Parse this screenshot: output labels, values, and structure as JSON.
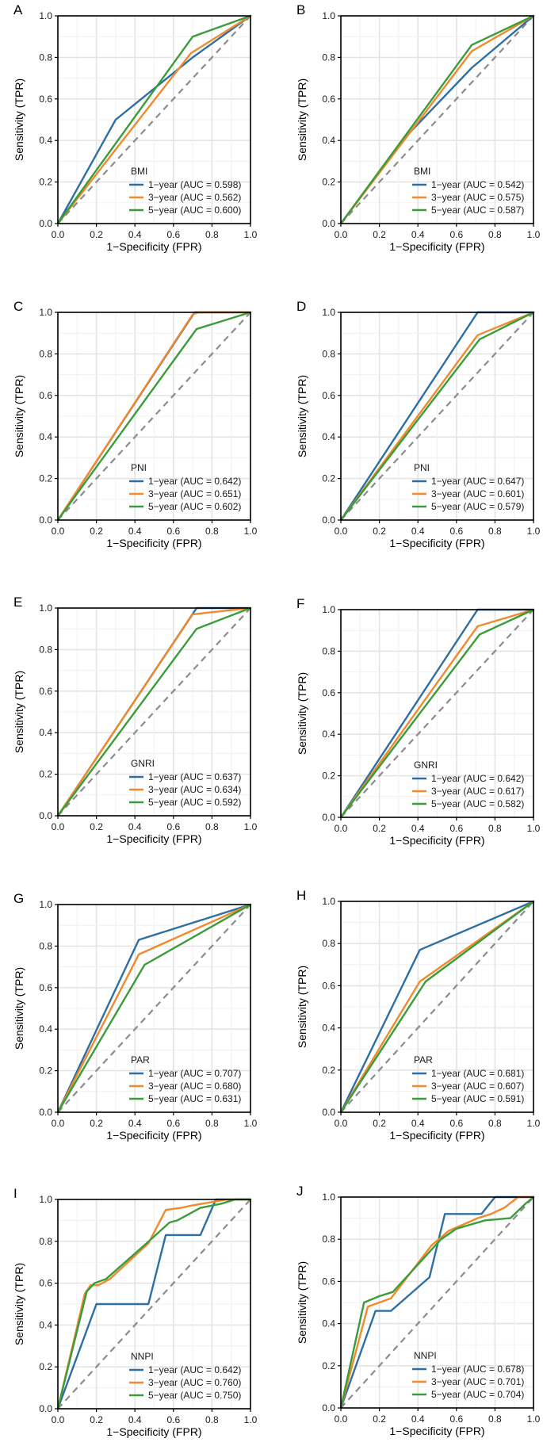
{
  "colors": {
    "1-year": "#2e6fa3",
    "3-year": "#f08a2c",
    "5-year": "#3a9c3a",
    "reference": "#8c8c8c"
  },
  "chart_data": [
    {
      "panel": "A",
      "type": "line",
      "xlabel": "1−Specificity (FPR)",
      "ylabel": "Sensitivity (TPR)",
      "xlim": [
        0,
        1
      ],
      "ylim": [
        0,
        1
      ],
      "xticks": [
        "0.0",
        "0.2",
        "0.4",
        "0.6",
        "0.8",
        "1.0"
      ],
      "yticks": [
        "0.0",
        "0.2",
        "0.4",
        "0.6",
        "0.8",
        "1.0"
      ],
      "legend_title": "BMI",
      "legend_position": "bottom-right",
      "series": [
        {
          "name": "1-year",
          "label": "1−year (AUC = 0.598)",
          "points": [
            [
              0,
              0
            ],
            [
              0.3,
              0.5
            ],
            [
              0.7,
              0.8
            ],
            [
              1,
              1
            ]
          ]
        },
        {
          "name": "3-year",
          "label": "3−year (AUC = 0.562)",
          "points": [
            [
              0,
              0
            ],
            [
              0.69,
              0.82
            ],
            [
              1,
              1
            ]
          ]
        },
        {
          "name": "5-year",
          "label": "5−year (AUC = 0.600)",
          "points": [
            [
              0,
              0
            ],
            [
              0.7,
              0.9
            ],
            [
              1,
              1
            ]
          ]
        }
      ]
    },
    {
      "panel": "B",
      "type": "line",
      "xlabel": "1−Specificity (FPR)",
      "ylabel": "Sensitivity (TPR)",
      "xlim": [
        0,
        1
      ],
      "ylim": [
        0,
        1
      ],
      "xticks": [
        "0.0",
        "0.2",
        "0.4",
        "0.6",
        "0.8",
        "1.0"
      ],
      "yticks": [
        "0.0",
        "0.2",
        "0.4",
        "0.6",
        "0.8",
        "1.0"
      ],
      "legend_title": "BMI",
      "legend_position": "bottom-right",
      "series": [
        {
          "name": "1-year",
          "label": "1−year (AUC = 0.542)",
          "points": [
            [
              0,
              0
            ],
            [
              0.35,
              0.43
            ],
            [
              0.68,
              0.75
            ],
            [
              1,
              1
            ]
          ]
        },
        {
          "name": "3-year",
          "label": "3−year (AUC = 0.575)",
          "points": [
            [
              0,
              0
            ],
            [
              0.68,
              0.83
            ],
            [
              1,
              1
            ]
          ]
        },
        {
          "name": "5-year",
          "label": "5−year (AUC = 0.587)",
          "points": [
            [
              0,
              0
            ],
            [
              0.68,
              0.86
            ],
            [
              1,
              1
            ]
          ]
        }
      ]
    },
    {
      "panel": "C",
      "type": "line",
      "xlabel": "1−Specificity (FPR)",
      "ylabel": "Sensitivity (TPR)",
      "xlim": [
        0,
        1
      ],
      "ylim": [
        0,
        1
      ],
      "xticks": [
        "0.0",
        "0.2",
        "0.4",
        "0.6",
        "0.8",
        "1.0"
      ],
      "yticks": [
        "0.0",
        "0.2",
        "0.4",
        "0.6",
        "0.8",
        "1.0"
      ],
      "legend_title": "PNI",
      "legend_position": "bottom-right",
      "series": [
        {
          "name": "1-year",
          "label": "1−year (AUC = 0.642)",
          "points": [
            [
              0,
              0
            ],
            [
              0.71,
              1
            ],
            [
              1,
              1
            ]
          ]
        },
        {
          "name": "3-year",
          "label": "3−year (AUC = 0.651)",
          "points": [
            [
              0,
              0
            ],
            [
              0.7,
              0.99
            ],
            [
              0.73,
              1
            ],
            [
              1,
              1
            ]
          ]
        },
        {
          "name": "5-year",
          "label": "5−year (AUC = 0.602)",
          "points": [
            [
              0,
              0
            ],
            [
              0.72,
              0.92
            ],
            [
              1,
              1
            ]
          ]
        }
      ]
    },
    {
      "panel": "D",
      "type": "line",
      "xlabel": "1−Specificity (FPR)",
      "ylabel": "Sensitivity (TPR)",
      "xlim": [
        0,
        1
      ],
      "ylim": [
        0,
        1
      ],
      "xticks": [
        "0.0",
        "0.2",
        "0.4",
        "0.6",
        "0.8",
        "1.0"
      ],
      "yticks": [
        "0.0",
        "0.2",
        "0.4",
        "0.6",
        "0.8",
        "1.0"
      ],
      "legend_title": "PNI",
      "legend_position": "bottom-right",
      "series": [
        {
          "name": "1-year",
          "label": "1−year (AUC = 0.647)",
          "points": [
            [
              0,
              0
            ],
            [
              0.71,
              1
            ],
            [
              1,
              1
            ]
          ]
        },
        {
          "name": "3-year",
          "label": "3−year (AUC = 0.601)",
          "points": [
            [
              0,
              0
            ],
            [
              0.71,
              0.89
            ],
            [
              1,
              1
            ]
          ]
        },
        {
          "name": "5-year",
          "label": "5−year (AUC = 0.579)",
          "points": [
            [
              0,
              0
            ],
            [
              0.72,
              0.87
            ],
            [
              1,
              1
            ]
          ]
        }
      ]
    },
    {
      "panel": "E",
      "type": "line",
      "xlabel": "1−Specificity (FPR)",
      "ylabel": "Sensitivity (TPR)",
      "xlim": [
        0,
        1
      ],
      "ylim": [
        0,
        1
      ],
      "xticks": [
        "0.0",
        "0.2",
        "0.4",
        "0.6",
        "0.8",
        "1.0"
      ],
      "yticks": [
        "0.0",
        "0.2",
        "0.4",
        "0.6",
        "0.8",
        "1.0"
      ],
      "legend_title": "GNRI",
      "legend_position": "bottom-right",
      "series": [
        {
          "name": "1-year",
          "label": "1−year (AUC = 0.637)",
          "points": [
            [
              0,
              0
            ],
            [
              0.72,
              1
            ],
            [
              1,
              1
            ]
          ]
        },
        {
          "name": "3-year",
          "label": "3−year (AUC = 0.634)",
          "points": [
            [
              0,
              0
            ],
            [
              0.7,
              0.97
            ],
            [
              1,
              1
            ]
          ]
        },
        {
          "name": "5-year",
          "label": "5−year (AUC = 0.592)",
          "points": [
            [
              0,
              0
            ],
            [
              0.72,
              0.9
            ],
            [
              1,
              1
            ]
          ]
        }
      ]
    },
    {
      "panel": "F",
      "type": "line",
      "xlabel": "1−Specificity (FPR)",
      "ylabel": "Sensitivity (TPR)",
      "xlim": [
        0,
        1
      ],
      "ylim": [
        0,
        1
      ],
      "xticks": [
        "0.0",
        "0.2",
        "0.4",
        "0.6",
        "0.8",
        "1.0"
      ],
      "yticks": [
        "0.0",
        "0.2",
        "0.4",
        "0.6",
        "0.8",
        "1.0"
      ],
      "legend_title": "GNRI",
      "legend_position": "bottom-right",
      "series": [
        {
          "name": "1-year",
          "label": "1−year (AUC = 0.642)",
          "points": [
            [
              0,
              0
            ],
            [
              0.71,
              1
            ],
            [
              1,
              1
            ]
          ]
        },
        {
          "name": "3-year",
          "label": "3−year (AUC = 0.617)",
          "points": [
            [
              0,
              0
            ],
            [
              0.71,
              0.92
            ],
            [
              1,
              1
            ]
          ]
        },
        {
          "name": "5-year",
          "label": "5−year (AUC = 0.582)",
          "points": [
            [
              0,
              0
            ],
            [
              0.72,
              0.88
            ],
            [
              1,
              1
            ]
          ]
        }
      ]
    },
    {
      "panel": "G",
      "type": "line",
      "xlabel": "1−Specificity (FPR)",
      "ylabel": "Sensitivity (TPR)",
      "xlim": [
        0,
        1
      ],
      "ylim": [
        0,
        1
      ],
      "xticks": [
        "0.0",
        "0.2",
        "0.4",
        "0.6",
        "0.8",
        "1.0"
      ],
      "yticks": [
        "0.0",
        "0.2",
        "0.4",
        "0.6",
        "0.8",
        "1.0"
      ],
      "legend_title": "PAR",
      "legend_position": "bottom-right",
      "series": [
        {
          "name": "1-year",
          "label": "1−year (AUC = 0.707)",
          "points": [
            [
              0,
              0
            ],
            [
              0.42,
              0.83
            ],
            [
              1,
              1
            ]
          ]
        },
        {
          "name": "3-year",
          "label": "3−year (AUC = 0.680)",
          "points": [
            [
              0,
              0
            ],
            [
              0.42,
              0.76
            ],
            [
              1,
              1
            ]
          ]
        },
        {
          "name": "5-year",
          "label": "5−year (AUC = 0.631)",
          "points": [
            [
              0,
              0
            ],
            [
              0.45,
              0.71
            ],
            [
              1,
              1
            ]
          ]
        }
      ]
    },
    {
      "panel": "H",
      "type": "line",
      "xlabel": "1−Specificity (FPR)",
      "ylabel": "Sensitivity (TPR)",
      "xlim": [
        0,
        1
      ],
      "ylim": [
        0,
        1
      ],
      "xticks": [
        "0.0",
        "0.2",
        "0.4",
        "0.6",
        "0.8",
        "1.0"
      ],
      "yticks": [
        "0.0",
        "0.2",
        "0.4",
        "0.6",
        "0.8",
        "1.0"
      ],
      "legend_title": "PAR",
      "legend_position": "bottom-right",
      "series": [
        {
          "name": "1-year",
          "label": "1−year (AUC = 0.681)",
          "points": [
            [
              0,
              0
            ],
            [
              0.41,
              0.77
            ],
            [
              1,
              1
            ]
          ]
        },
        {
          "name": "3-year",
          "label": "3−year (AUC = 0.607)",
          "points": [
            [
              0,
              0
            ],
            [
              0.41,
              0.62
            ],
            [
              1,
              1
            ]
          ]
        },
        {
          "name": "5-year",
          "label": "5−year (AUC = 0.591)",
          "points": [
            [
              0,
              0
            ],
            [
              0.44,
              0.62
            ],
            [
              1,
              1
            ]
          ]
        }
      ]
    },
    {
      "panel": "I",
      "type": "line",
      "xlabel": "1−Specificity (FPR)",
      "ylabel": "Sensitivity (TPR)",
      "xlim": [
        0,
        1
      ],
      "ylim": [
        0,
        1
      ],
      "xticks": [
        "0.0",
        "0.2",
        "0.4",
        "0.6",
        "0.8",
        "1.0"
      ],
      "yticks": [
        "0.0",
        "0.2",
        "0.4",
        "0.6",
        "0.8",
        "1.0"
      ],
      "legend_title": "NNPI",
      "legend_position": "bottom-right",
      "series": [
        {
          "name": "1-year",
          "label": "1−year (AUC = 0.642)",
          "points": [
            [
              0,
              0
            ],
            [
              0.2,
              0.5
            ],
            [
              0.47,
              0.5
            ],
            [
              0.56,
              0.83
            ],
            [
              0.74,
              0.83
            ],
            [
              0.82,
              1
            ],
            [
              1,
              1
            ]
          ]
        },
        {
          "name": "3-year",
          "label": "3−year (AUC = 0.760)",
          "points": [
            [
              0,
              0
            ],
            [
              0.14,
              0.55
            ],
            [
              0.17,
              0.59
            ],
            [
              0.21,
              0.59
            ],
            [
              0.27,
              0.62
            ],
            [
              0.47,
              0.79
            ],
            [
              0.56,
              0.95
            ],
            [
              0.64,
              0.96
            ],
            [
              0.69,
              0.97
            ],
            [
              0.75,
              0.98
            ],
            [
              0.88,
              1
            ],
            [
              1,
              1
            ]
          ]
        },
        {
          "name": "5-year",
          "label": "5−year (AUC = 0.750)",
          "points": [
            [
              0,
              0
            ],
            [
              0.15,
              0.56
            ],
            [
              0.19,
              0.6
            ],
            [
              0.25,
              0.62
            ],
            [
              0.46,
              0.79
            ],
            [
              0.58,
              0.89
            ],
            [
              0.62,
              0.9
            ],
            [
              0.74,
              0.96
            ],
            [
              0.85,
              0.98
            ],
            [
              0.92,
              1
            ],
            [
              1,
              1
            ]
          ]
        }
      ]
    },
    {
      "panel": "J",
      "type": "line",
      "xlabel": "1−Specificity (FPR)",
      "ylabel": "Sensitivity (TPR)",
      "xlim": [
        0,
        1
      ],
      "ylim": [
        0,
        1
      ],
      "xticks": [
        "0.0",
        "0.2",
        "0.4",
        "0.6",
        "0.8",
        "1.0"
      ],
      "yticks": [
        "0.0",
        "0.2",
        "0.4",
        "0.6",
        "0.8",
        "1.0"
      ],
      "legend_title": "NNPI",
      "legend_position": "bottom-right",
      "series": [
        {
          "name": "1-year",
          "label": "1−year (AUC = 0.678)",
          "points": [
            [
              0,
              0
            ],
            [
              0.18,
              0.46
            ],
            [
              0.26,
              0.46
            ],
            [
              0.46,
              0.62
            ],
            [
              0.54,
              0.92
            ],
            [
              0.73,
              0.92
            ],
            [
              0.8,
              1
            ],
            [
              1,
              1
            ]
          ]
        },
        {
          "name": "3-year",
          "label": "3−year (AUC = 0.701)",
          "points": [
            [
              0,
              0
            ],
            [
              0.14,
              0.48
            ],
            [
              0.2,
              0.5
            ],
            [
              0.26,
              0.52
            ],
            [
              0.47,
              0.77
            ],
            [
              0.56,
              0.84
            ],
            [
              0.71,
              0.9
            ],
            [
              0.78,
              0.92
            ],
            [
              0.85,
              0.95
            ],
            [
              0.92,
              1
            ],
            [
              1,
              1
            ]
          ]
        },
        {
          "name": "5-year",
          "label": "5−year (AUC = 0.704)",
          "points": [
            [
              0,
              0
            ],
            [
              0.12,
              0.5
            ],
            [
              0.2,
              0.53
            ],
            [
              0.27,
              0.55
            ],
            [
              0.52,
              0.8
            ],
            [
              0.6,
              0.85
            ],
            [
              0.75,
              0.89
            ],
            [
              0.88,
              0.9
            ],
            [
              0.96,
              0.97
            ],
            [
              1,
              1
            ]
          ]
        }
      ]
    }
  ]
}
